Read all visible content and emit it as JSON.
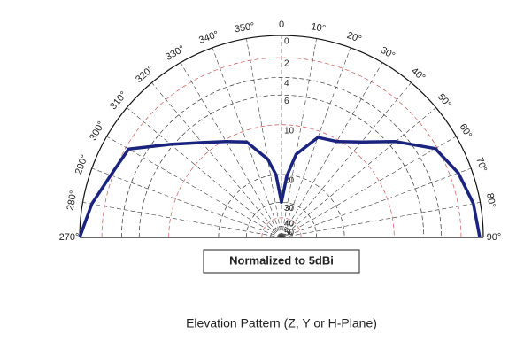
{
  "chart_data": {
    "type": "polar",
    "title": "Elevation Pattern (Z, Y or H-Plane)",
    "annotation": "Normalized to 5dBi",
    "radial_scale": "log",
    "rticks": [
      0,
      2,
      4,
      6,
      10,
      20,
      30,
      40,
      50
    ],
    "thetaticks": [
      {
        "value": 270,
        "label": "270°"
      },
      {
        "value": 280,
        "label": "280°"
      },
      {
        "value": 290,
        "label": "290°"
      },
      {
        "value": 300,
        "label": "300°"
      },
      {
        "value": 310,
        "label": "310°"
      },
      {
        "value": 320,
        "label": "320°"
      },
      {
        "value": 330,
        "label": "330°"
      },
      {
        "value": 340,
        "label": "340°"
      },
      {
        "value": 350,
        "label": "350°"
      },
      0,
      {
        "value": 10,
        "label": "10°"
      },
      {
        "value": 20,
        "label": "20°"
      },
      {
        "value": 30,
        "label": "30°"
      },
      {
        "value": 40,
        "label": "40°"
      },
      {
        "value": 50,
        "label": "50°"
      },
      {
        "value": 60,
        "label": "60°"
      },
      {
        "value": 70,
        "label": "70°"
      },
      {
        "value": 80,
        "label": "80°"
      },
      {
        "value": 90,
        "label": "90°"
      }
    ],
    "grid": true,
    "series": [
      {
        "color": "#1a237e",
        "x": [
          270,
          280,
          290,
          300,
          310,
          320,
          330,
          340,
          350,
          355,
          0,
          5,
          10,
          20,
          30,
          40,
          50,
          60,
          70,
          80,
          90
        ],
        "values": [
          0,
          0.8,
          1.8,
          2.3,
          5.7,
          8.4,
          10.3,
          11.8,
          16,
          20,
          30,
          20.3,
          15,
          11,
          10.3,
          8.3,
          5.2,
          2.2,
          1.2,
          0.6,
          0.3
        ]
      }
    ]
  }
}
